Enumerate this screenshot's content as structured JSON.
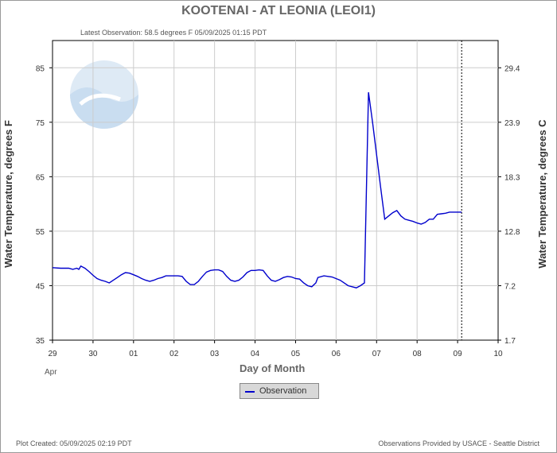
{
  "chart_data": {
    "type": "line",
    "title": "KOOTENAI - AT LEONIA  (LEOI1)",
    "subtitle": "Latest Observation: 58.5 degrees F 05/09/2025 01:15 PDT",
    "xlabel": "Day of Month",
    "xlabel_month": "Apr",
    "ylabel_left": "Water Temperature, degrees F",
    "ylabel_right": "Water Temperature, degrees C",
    "x_ticks": [
      "29",
      "30",
      "01",
      "02",
      "03",
      "04",
      "05",
      "06",
      "07",
      "08",
      "09",
      "10"
    ],
    "y_ticks_left": [
      "35",
      "45",
      "55",
      "65",
      "75",
      "85"
    ],
    "y_ticks_right": [
      "1.7",
      "7.2",
      "12.8",
      "18.3",
      "23.9",
      "29.4"
    ],
    "xlim": [
      0,
      11
    ],
    "ylim": [
      35,
      90
    ],
    "latest_observation_x": 10.1,
    "grid": true,
    "legend_placement": "bottom-center",
    "series": [
      {
        "name": "Observation",
        "color": "#0000cc",
        "x": [
          0,
          0.2,
          0.4,
          0.5,
          0.6,
          0.65,
          0.7,
          0.8,
          0.9,
          1.0,
          1.1,
          1.2,
          1.3,
          1.4,
          1.5,
          1.6,
          1.7,
          1.8,
          1.9,
          2.0,
          2.1,
          2.2,
          2.3,
          2.4,
          2.5,
          2.6,
          2.7,
          2.8,
          3.0,
          3.1,
          3.2,
          3.3,
          3.4,
          3.5,
          3.6,
          3.7,
          3.8,
          3.9,
          4.0,
          4.1,
          4.2,
          4.3,
          4.4,
          4.5,
          4.6,
          4.7,
          4.8,
          4.9,
          5.0,
          5.1,
          5.2,
          5.3,
          5.4,
          5.5,
          5.6,
          5.7,
          5.8,
          5.9,
          6.0,
          6.1,
          6.2,
          6.3,
          6.4,
          6.5,
          6.55,
          6.7,
          6.9,
          7.1,
          7.3,
          7.5,
          7.6,
          7.7,
          7.8,
          7.9,
          8.0,
          8.1,
          8.2,
          8.3,
          8.4,
          8.5,
          8.6,
          8.7,
          8.8,
          8.9,
          9.0,
          9.1,
          9.2,
          9.3,
          9.4,
          9.5,
          9.6,
          9.7,
          9.8,
          9.9,
          10.0,
          10.1
        ],
        "y": [
          48.3,
          48.2,
          48.2,
          48.0,
          48.2,
          48.0,
          48.6,
          48.2,
          47.6,
          46.9,
          46.3,
          46.0,
          45.8,
          45.5,
          46.0,
          46.5,
          47.0,
          47.4,
          47.3,
          47.0,
          46.7,
          46.3,
          46.0,
          45.8,
          46.0,
          46.3,
          46.5,
          46.8,
          46.8,
          46.8,
          46.7,
          45.8,
          45.2,
          45.2,
          45.8,
          46.7,
          47.5,
          47.8,
          47.9,
          47.9,
          47.6,
          46.7,
          46.0,
          45.8,
          46.0,
          46.6,
          47.4,
          47.8,
          47.8,
          47.9,
          47.8,
          46.8,
          46.0,
          45.8,
          46.1,
          46.5,
          46.7,
          46.6,
          46.3,
          46.2,
          45.5,
          45.0,
          44.8,
          45.5,
          46.5,
          46.8,
          46.6,
          46.0,
          45.0,
          44.6,
          45.0,
          45.5,
          80.5,
          75.0,
          69.0,
          63.0,
          57.2,
          57.8,
          58.4,
          58.8,
          57.8,
          57.2,
          57.0,
          56.8,
          56.5,
          56.3,
          56.6,
          57.2,
          57.2,
          58.1,
          58.2,
          58.3,
          58.5,
          58.5,
          58.5,
          58.5
        ]
      }
    ],
    "footer_left": "Plot Created: 05/09/2025 02:19 PDT",
    "footer_right": "Observations Provided by USACE - Seattle District"
  }
}
